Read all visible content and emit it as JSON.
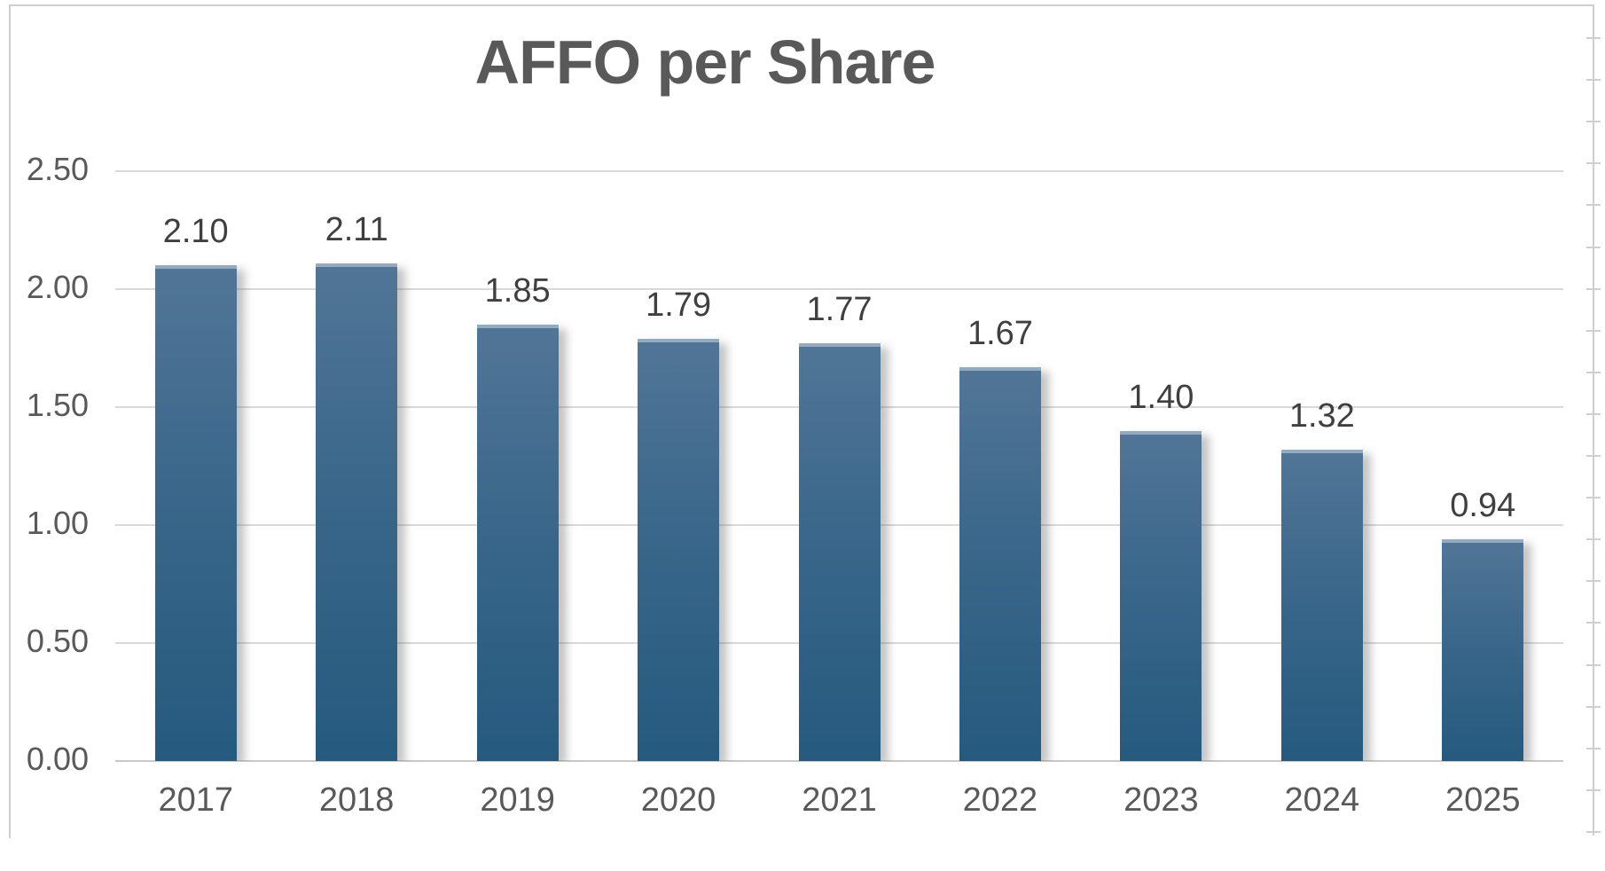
{
  "page": {
    "background": "#ffffff"
  },
  "chart_data": {
    "type": "bar",
    "title": "AFFO per Share",
    "categories": [
      "2017",
      "2018",
      "2019",
      "2020",
      "2021",
      "2022",
      "2023",
      "2024",
      "2025"
    ],
    "values": [
      2.1,
      2.11,
      1.85,
      1.79,
      1.77,
      1.67,
      1.4,
      1.32,
      0.94
    ],
    "value_labels": [
      "2.10",
      "2.11",
      "1.85",
      "1.79",
      "1.77",
      "1.67",
      "1.40",
      "1.32",
      "0.94"
    ],
    "y_tick_labels": [
      "2.50",
      "2.00",
      "1.50",
      "1.00",
      "0.50",
      "0.00"
    ],
    "y_tick_values": [
      2.5,
      2.0,
      1.5,
      1.0,
      0.5,
      0.0
    ],
    "ylim": [
      0,
      2.5
    ],
    "xlabel": "",
    "ylabel": "",
    "legend": "none",
    "grid": "horizontal",
    "colors": {
      "bar_gradient_top": "#517597",
      "bar_gradient_mid": "#3a678a",
      "bar_gradient_bottom": "#255a7e",
      "bar_top_highlight": "#94aabf",
      "title_text": "#595959",
      "axis_label_text": "#595959",
      "data_label_text": "#3f3f3f",
      "gridline": "#d9d9d9",
      "baseline": "#c9c9c9",
      "frame": "#d0cece"
    }
  },
  "frame": {
    "right_tick_count": 20
  }
}
